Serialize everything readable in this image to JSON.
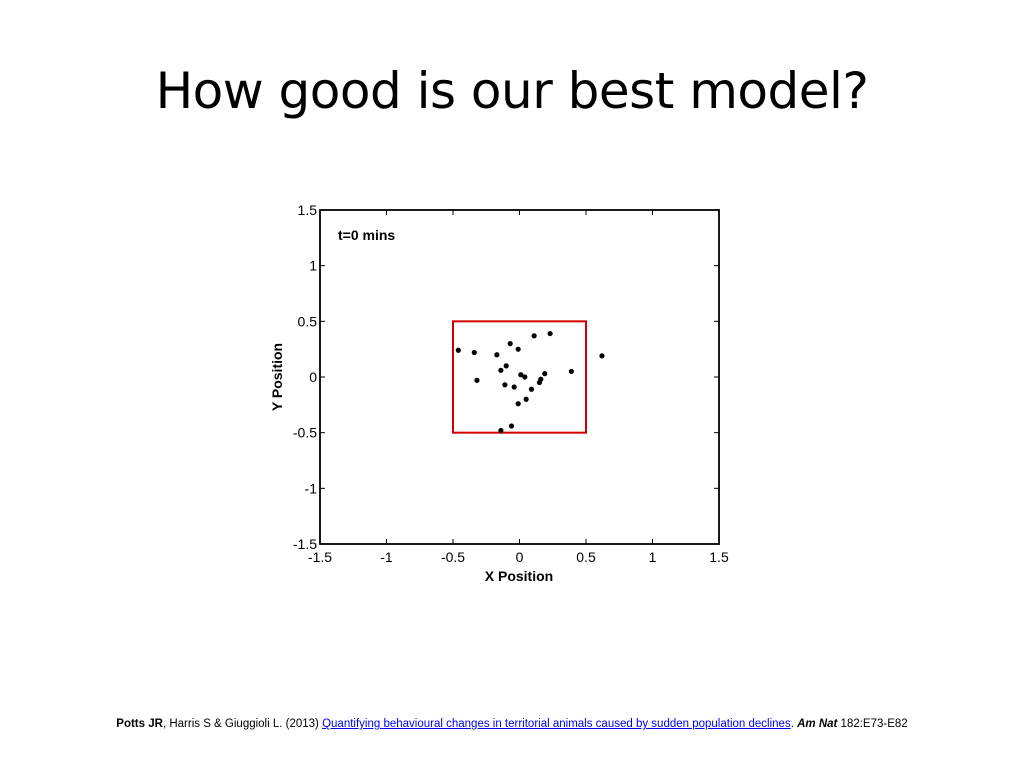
{
  "slide": {
    "title": "How good is our best model?"
  },
  "chart_data": {
    "type": "scatter",
    "annotation": "t=0 mins",
    "xlabel": "X Position",
    "ylabel": "Y Position",
    "xlim": [
      -1.5,
      1.5
    ],
    "ylim": [
      -1.5,
      1.5
    ],
    "xticks": [
      "-1.5",
      "-1",
      "-0.5",
      "0",
      "0.5",
      "1",
      "1.5"
    ],
    "yticks": [
      "1.5",
      "1",
      "0.5",
      "0",
      "-0.5",
      "-1",
      "-1.5"
    ],
    "xtick_values": [
      -1.5,
      -1,
      -0.5,
      0,
      0.5,
      1,
      1.5
    ],
    "ytick_values": [
      1.5,
      1,
      0.5,
      0,
      -0.5,
      -1,
      -1.5
    ],
    "grid": false,
    "territory_box": {
      "x": [
        -0.5,
        0.5
      ],
      "y": [
        -0.5,
        0.5
      ],
      "color": "#d40000"
    },
    "points": [
      {
        "x": -0.46,
        "y": 0.24
      },
      {
        "x": -0.34,
        "y": 0.22
      },
      {
        "x": -0.17,
        "y": 0.2
      },
      {
        "x": -0.07,
        "y": 0.3
      },
      {
        "x": -0.01,
        "y": 0.25
      },
      {
        "x": 0.11,
        "y": 0.37
      },
      {
        "x": 0.23,
        "y": 0.39
      },
      {
        "x": 0.62,
        "y": 0.19
      },
      {
        "x": -0.32,
        "y": -0.03
      },
      {
        "x": -0.14,
        "y": 0.06
      },
      {
        "x": -0.1,
        "y": 0.1
      },
      {
        "x": -0.11,
        "y": -0.07
      },
      {
        "x": -0.04,
        "y": -0.09
      },
      {
        "x": 0.01,
        "y": 0.02
      },
      {
        "x": 0.04,
        "y": 0.0
      },
      {
        "x": 0.15,
        "y": -0.05
      },
      {
        "x": 0.16,
        "y": -0.02
      },
      {
        "x": 0.19,
        "y": 0.03
      },
      {
        "x": 0.39,
        "y": 0.05
      },
      {
        "x": 0.09,
        "y": -0.11
      },
      {
        "x": 0.05,
        "y": -0.2
      },
      {
        "x": -0.01,
        "y": -0.24
      },
      {
        "x": -0.06,
        "y": -0.44
      },
      {
        "x": -0.14,
        "y": -0.48
      }
    ],
    "colors": {
      "axis": "#000000",
      "points": "#000000",
      "box": "#d40000"
    }
  },
  "citation": {
    "authors_lead": "Potts JR",
    "authors_rest": ", Harris S & Giuggioli L. (2013) ",
    "link_text": "Quantifying behavioural changes in territorial animals caused by sudden population declines",
    "after_link": ". ",
    "journal": "Am Nat",
    "volume_pages": " 182:E73-E82"
  }
}
